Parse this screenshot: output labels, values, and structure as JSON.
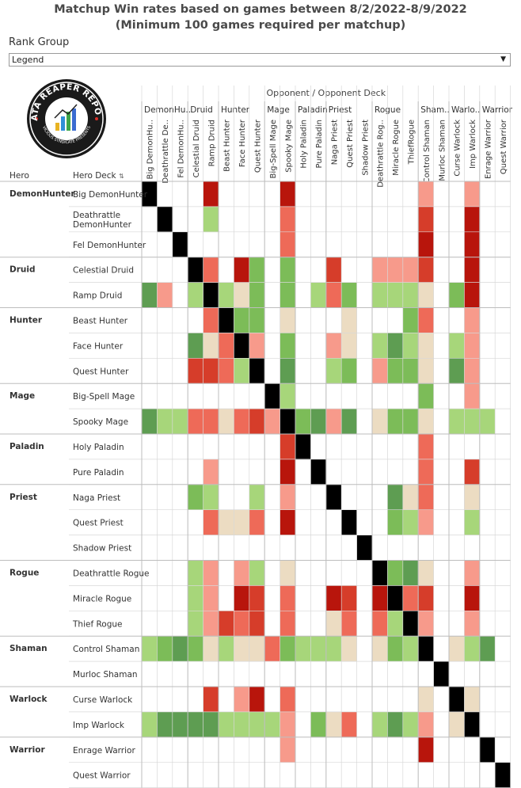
{
  "title": {
    "line1": "Matchup Win rates based on games between 8/2/2022-8/9/2022",
    "line2": "(Minimum 100 games required per matchup)"
  },
  "rank_group": {
    "label": "Rank Group",
    "selected": "Legend"
  },
  "logo": {
    "text_top": "DATA REAPER REPORT",
    "text_bottom": "VICIOUS SYNDICATE PRESENTS"
  },
  "colors": {
    "dark_red": "#b8150c",
    "red": "#d63d2a",
    "salmon": "#ee6a58",
    "light_salmon": "#f79a8b",
    "beige": "#ecdcc2",
    "light_green": "#a7d67a",
    "green": "#7cbc58",
    "mid_green": "#5e9d52",
    "dark_green": "#44872b",
    "mirror": "#000000",
    "grid": "#d8d8d8"
  },
  "chart_data": {
    "type": "heatmap",
    "axis_titles": {
      "top": "Opponent / Opponent Deck",
      "hero": "Hero",
      "deck": "Hero Deck"
    },
    "classes": [
      {
        "name": "DemonHunter",
        "short": "DemonHu..",
        "decks": 3
      },
      {
        "name": "Druid",
        "short": "Druid",
        "decks": 2
      },
      {
        "name": "Hunter",
        "short": "Hunter",
        "decks": 3
      },
      {
        "name": "Mage",
        "short": "Mage",
        "decks": 2
      },
      {
        "name": "Paladin",
        "short": "Paladin",
        "decks": 2
      },
      {
        "name": "Priest",
        "short": "Priest",
        "decks": 3
      },
      {
        "name": "Rogue",
        "short": "Rogue",
        "decks": 3
      },
      {
        "name": "Shaman",
        "short": "Sham..",
        "decks": 2
      },
      {
        "name": "Warlock",
        "short": "Warlo..",
        "decks": 2
      },
      {
        "name": "Warrior",
        "short": "Warrior",
        "decks": 2
      }
    ],
    "column_labels": [
      "Big DemonHu..",
      "Deathrattle De..",
      "Fel DemonHu..",
      "Celestial Druid",
      "Ramp Druid",
      "Beast Hunter",
      "Face Hunter",
      "Quest Hunter",
      "Big-Spell Mage",
      "Spooky Mage",
      "Holy Paladin",
      "Pure Paladin",
      "Naga Priest",
      "Quest Priest",
      "Shadow Priest",
      "Deathrattle Rog..",
      "Miracle Rogue",
      "ThiefRogue",
      "Control Shaman",
      "Murloc Shaman",
      "Curse Warlock",
      "Imp Warlock",
      "Enrage Warrior",
      "Quest Warrior"
    ],
    "row_labels": [
      "Big DemonHunter",
      "Deathrattle DemonHunter",
      "Fel DemonHunter",
      "Celestial Druid",
      "Ramp Druid",
      "Beast Hunter",
      "Face Hunter",
      "Quest Hunter",
      "Big-Spell Mage",
      "Spooky Mage",
      "Holy Paladin",
      "Pure Paladin",
      "Naga Priest",
      "Quest Priest",
      "Shadow Priest",
      "Deathrattle Rogue",
      "Miracle Rogue",
      "Thief Rogue",
      "Control Shaman",
      "Murloc Shaman",
      "Curse Warlock",
      "Imp Warlock",
      "Enrage Warrior",
      "Quest Warrior"
    ],
    "value_scale": "approximate win rate (%) read from cell color; 100 = mirror (black); null = fewer than 100 games",
    "values": [
      [
        100,
        null,
        null,
        null,
        35,
        null,
        null,
        null,
        null,
        35,
        null,
        null,
        null,
        null,
        null,
        null,
        null,
        null,
        45,
        null,
        null,
        45,
        null,
        null
      ],
      [
        null,
        100,
        null,
        null,
        55,
        null,
        null,
        null,
        null,
        42,
        null,
        null,
        null,
        null,
        null,
        null,
        null,
        null,
        38,
        null,
        null,
        35,
        null,
        null
      ],
      [
        null,
        null,
        100,
        null,
        null,
        null,
        null,
        null,
        null,
        42,
        null,
        null,
        null,
        null,
        null,
        null,
        null,
        null,
        35,
        null,
        null,
        35,
        null,
        null
      ],
      [
        null,
        null,
        null,
        100,
        42,
        null,
        35,
        58,
        null,
        58,
        null,
        null,
        38,
        null,
        null,
        45,
        45,
        45,
        38,
        null,
        null,
        35,
        null,
        null
      ],
      [
        62,
        45,
        null,
        55,
        100,
        55,
        50,
        58,
        null,
        58,
        null,
        55,
        42,
        58,
        null,
        55,
        55,
        55,
        50,
        null,
        58,
        35,
        null,
        null
      ],
      [
        null,
        null,
        null,
        null,
        42,
        100,
        58,
        58,
        null,
        50,
        null,
        null,
        null,
        50,
        null,
        null,
        null,
        58,
        42,
        null,
        null,
        45,
        null,
        null
      ],
      [
        null,
        null,
        null,
        62,
        50,
        42,
        100,
        45,
        null,
        58,
        null,
        null,
        45,
        50,
        null,
        55,
        62,
        55,
        50,
        null,
        55,
        45,
        null,
        null
      ],
      [
        null,
        null,
        null,
        38,
        38,
        42,
        55,
        100,
        null,
        62,
        null,
        null,
        55,
        58,
        null,
        45,
        58,
        58,
        50,
        null,
        62,
        45,
        null,
        null
      ],
      [
        null,
        null,
        null,
        null,
        null,
        null,
        null,
        null,
        100,
        55,
        null,
        null,
        null,
        null,
        null,
        null,
        null,
        null,
        58,
        null,
        null,
        45,
        null,
        null
      ],
      [
        62,
        55,
        55,
        42,
        42,
        50,
        42,
        38,
        45,
        100,
        58,
        62,
        45,
        62,
        null,
        50,
        58,
        58,
        50,
        null,
        55,
        55,
        55,
        null
      ],
      [
        null,
        null,
        null,
        null,
        null,
        null,
        null,
        null,
        null,
        38,
        100,
        null,
        null,
        null,
        null,
        null,
        null,
        null,
        42,
        null,
        null,
        null,
        null,
        null
      ],
      [
        null,
        null,
        null,
        null,
        45,
        null,
        null,
        null,
        null,
        35,
        null,
        100,
        null,
        null,
        null,
        null,
        null,
        null,
        42,
        null,
        null,
        38,
        null,
        null
      ],
      [
        null,
        null,
        null,
        58,
        55,
        null,
        null,
        55,
        null,
        45,
        null,
        null,
        100,
        null,
        null,
        null,
        62,
        50,
        42,
        null,
        null,
        50,
        null,
        null
      ],
      [
        null,
        null,
        null,
        null,
        42,
        50,
        50,
        42,
        null,
        35,
        null,
        null,
        null,
        100,
        null,
        null,
        58,
        55,
        45,
        null,
        null,
        55,
        null,
        null
      ],
      [
        null,
        null,
        null,
        null,
        null,
        null,
        null,
        null,
        null,
        null,
        null,
        null,
        null,
        null,
        100,
        null,
        null,
        null,
        null,
        null,
        null,
        null,
        null,
        null
      ],
      [
        null,
        null,
        null,
        55,
        45,
        null,
        45,
        55,
        null,
        50,
        null,
        null,
        null,
        null,
        null,
        100,
        58,
        62,
        50,
        null,
        null,
        45,
        null,
        null
      ],
      [
        null,
        null,
        null,
        55,
        45,
        null,
        35,
        38,
        null,
        42,
        null,
        null,
        35,
        38,
        null,
        35,
        100,
        42,
        38,
        null,
        null,
        35,
        null,
        null
      ],
      [
        null,
        null,
        null,
        55,
        45,
        38,
        42,
        38,
        null,
        42,
        null,
        null,
        50,
        42,
        null,
        42,
        55,
        100,
        45,
        null,
        null,
        45,
        null,
        null
      ],
      [
        55,
        58,
        62,
        58,
        50,
        55,
        50,
        50,
        42,
        58,
        55,
        55,
        55,
        50,
        null,
        50,
        58,
        55,
        100,
        null,
        50,
        55,
        62,
        null
      ],
      [
        null,
        null,
        null,
        null,
        null,
        null,
        null,
        null,
        null,
        null,
        null,
        null,
        null,
        null,
        null,
        null,
        null,
        null,
        null,
        100,
        null,
        null,
        null,
        null
      ],
      [
        null,
        null,
        null,
        null,
        38,
        null,
        45,
        35,
        null,
        42,
        null,
        null,
        null,
        null,
        null,
        null,
        null,
        null,
        50,
        null,
        100,
        50,
        null,
        null
      ],
      [
        55,
        62,
        62,
        62,
        62,
        55,
        55,
        55,
        55,
        45,
        null,
        58,
        50,
        42,
        null,
        55,
        62,
        55,
        45,
        null,
        50,
        100,
        null,
        null
      ],
      [
        null,
        null,
        null,
        null,
        null,
        null,
        null,
        null,
        null,
        45,
        null,
        null,
        null,
        null,
        null,
        null,
        null,
        null,
        35,
        null,
        null,
        null,
        100,
        null
      ],
      [
        null,
        null,
        null,
        null,
        null,
        null,
        null,
        null,
        null,
        null,
        null,
        null,
        null,
        null,
        null,
        null,
        null,
        null,
        null,
        null,
        null,
        null,
        null,
        100
      ]
    ]
  }
}
